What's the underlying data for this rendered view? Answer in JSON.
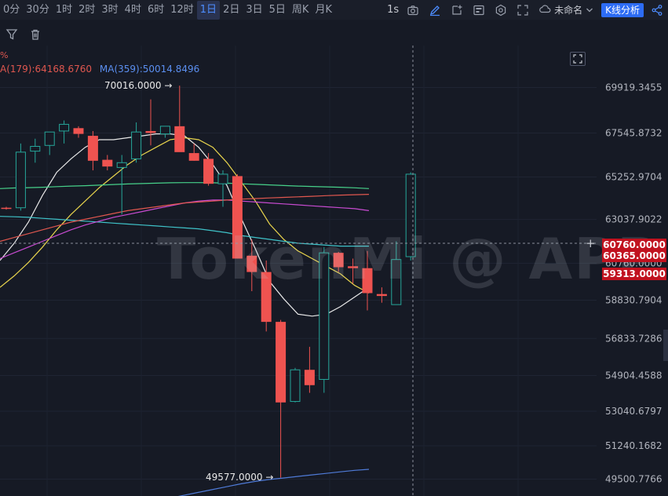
{
  "toolbar": {
    "timeframes": [
      {
        "label": "0分",
        "active": false
      },
      {
        "label": "30分",
        "active": false
      },
      {
        "label": "1时",
        "active": false
      },
      {
        "label": "2时",
        "active": false
      },
      {
        "label": "3时",
        "active": false
      },
      {
        "label": "4时",
        "active": false
      },
      {
        "label": "6时",
        "active": false
      },
      {
        "label": "12时",
        "active": false
      },
      {
        "label": "1日",
        "active": true
      },
      {
        "label": "2日",
        "active": false
      },
      {
        "label": "3日",
        "active": false
      },
      {
        "label": "5日",
        "active": false
      },
      {
        "label": "周K",
        "active": false
      },
      {
        "label": "月K",
        "active": false
      }
    ],
    "interval": "1s",
    "layout_name": "未命名",
    "analysis_button": "K线分析"
  },
  "legend": {
    "percent_fragment": "%",
    "ma179": "A(179):64168.6760",
    "ma359": "MA(359):50014.8496"
  },
  "colors": {
    "up": "#26a69a",
    "down": "#ef5350",
    "ma_white": "#e8e8e8",
    "ma_yellow": "#e8d44d",
    "ma_teal": "#3fc3c9",
    "ma_green": "#47d18a",
    "ma_magenta": "#c84bd1",
    "ma_red": "#e0574f",
    "ma_blue": "#4f7bd8",
    "price_tag": "#c1121f",
    "background": "#161a25"
  },
  "chart_data": {
    "type": "candlestick",
    "y_axis_ticks": [
      "69919.3455",
      "67545.8732",
      "65252.9704",
      "63037.9022",
      "60760.0000",
      "58830.7904",
      "56833.7286",
      "54904.4588",
      "53040.6797",
      "51240.1682",
      "49500.7766"
    ],
    "y_range": [
      49000,
      72000
    ],
    "annotations": {
      "high_label": "70016.0000 →",
      "low_label": "49577.0000 →"
    },
    "current_price_tags": [
      "60760.0000",
      "60365.0000",
      "59313.0000"
    ],
    "watermark": "TokenMi @ APP",
    "candles": [
      {
        "o": 63650,
        "h": 63700,
        "l": 63550,
        "c": 63600
      },
      {
        "o": 63650,
        "h": 67000,
        "l": 63500,
        "c": 66550
      },
      {
        "o": 66600,
        "h": 67250,
        "l": 66000,
        "c": 66850
      },
      {
        "o": 66900,
        "h": 67600,
        "l": 66400,
        "c": 67600
      },
      {
        "o": 67650,
        "h": 68200,
        "l": 67000,
        "c": 68000
      },
      {
        "o": 67800,
        "h": 67900,
        "l": 67300,
        "c": 67500
      },
      {
        "o": 67400,
        "h": 67650,
        "l": 65600,
        "c": 66100
      },
      {
        "o": 66150,
        "h": 66400,
        "l": 65600,
        "c": 65800
      },
      {
        "o": 65750,
        "h": 66400,
        "l": 63300,
        "c": 66000
      },
      {
        "o": 66200,
        "h": 68100,
        "l": 66000,
        "c": 67600
      },
      {
        "o": 67650,
        "h": 69300,
        "l": 66900,
        "c": 67550
      },
      {
        "o": 67500,
        "h": 67900,
        "l": 67300,
        "c": 67900
      },
      {
        "o": 67900,
        "h": 70016,
        "l": 66600,
        "c": 66550
      },
      {
        "o": 66500,
        "h": 67000,
        "l": 66100,
        "c": 66100
      },
      {
        "o": 66200,
        "h": 66500,
        "l": 64800,
        "c": 64900
      },
      {
        "o": 64900,
        "h": 65600,
        "l": 63700,
        "c": 65400
      },
      {
        "o": 65300,
        "h": 65400,
        "l": 61000,
        "c": 61000
      },
      {
        "o": 61150,
        "h": 62000,
        "l": 59300,
        "c": 60300
      },
      {
        "o": 60300,
        "h": 60900,
        "l": 57200,
        "c": 57700
      },
      {
        "o": 57700,
        "h": 57800,
        "l": 49577,
        "c": 53500
      },
      {
        "o": 53550,
        "h": 55300,
        "l": 53500,
        "c": 55200
      },
      {
        "o": 55200,
        "h": 56400,
        "l": 54000,
        "c": 54400
      },
      {
        "o": 54700,
        "h": 61600,
        "l": 54000,
        "c": 61300
      },
      {
        "o": 61300,
        "h": 61350,
        "l": 60300,
        "c": 60550
      },
      {
        "o": 60600,
        "h": 61000,
        "l": 59700,
        "c": 60500
      },
      {
        "o": 60500,
        "h": 61400,
        "l": 58300,
        "c": 59200
      },
      {
        "o": 59150,
        "h": 59500,
        "l": 58700,
        "c": 59050
      },
      {
        "o": 58600,
        "h": 61900,
        "l": 58700,
        "c": 60950
      },
      {
        "o": 61100,
        "h": 65500,
        "l": 60900,
        "c": 65400
      }
    ],
    "ma_series": [
      {
        "color_key": "ma_white",
        "values": [
          60900,
          61800,
          62900,
          64300,
          65500,
          66200,
          66800,
          67200,
          67200,
          67300,
          67400,
          67500,
          67500,
          67400,
          66800,
          65900,
          64800,
          63100,
          61500,
          59800,
          58900,
          58100,
          58000,
          58100,
          58500,
          59000,
          59500
        ]
      },
      {
        "color_key": "ma_yellow",
        "values": [
          59500,
          60100,
          60800,
          61600,
          62500,
          63300,
          64000,
          64700,
          65300,
          65900,
          66400,
          66800,
          67200,
          67300,
          67200,
          66800,
          66000,
          65000,
          64000,
          62800,
          62000,
          61400,
          61000,
          60600,
          60200,
          59600,
          59200
        ]
      },
      {
        "color_key": "ma_teal",
        "values": [
          63200,
          63180,
          63150,
          63100,
          63050,
          63000,
          62950,
          62900,
          62850,
          62800,
          62750,
          62700,
          62650,
          62600,
          62550,
          62450,
          62350,
          62200,
          62100,
          62000,
          61900,
          61800,
          61750,
          61700,
          61650,
          61650,
          61650
        ]
      },
      {
        "color_key": "ma_green",
        "values": [
          64650,
          64680,
          64700,
          64720,
          64750,
          64780,
          64800,
          64830,
          64860,
          64890,
          64910,
          64930,
          64950,
          64960,
          64960,
          64950,
          64930,
          64900,
          64870,
          64840,
          64810,
          64780,
          64760,
          64740,
          64720,
          64690,
          64650
        ]
      },
      {
        "color_key": "ma_magenta",
        "values": [
          61000,
          61300,
          61600,
          61900,
          62200,
          62500,
          62750,
          62950,
          63150,
          63300,
          63450,
          63600,
          63750,
          63900,
          64000,
          64050,
          64050,
          64000,
          63950,
          63900,
          63850,
          63800,
          63750,
          63700,
          63650,
          63600,
          63500
        ]
      },
      {
        "color_key": "ma_red",
        "values": [
          61900,
          62100,
          62300,
          62500,
          62700,
          62900,
          63050,
          63200,
          63350,
          63500,
          63600,
          63700,
          63800,
          63900,
          63950,
          64000,
          64050,
          64100,
          64130,
          64160,
          64190,
          64220,
          64250,
          64280,
          64310,
          64330,
          64350
        ]
      },
      {
        "color_key": "ma_blue",
        "values": [
          48500,
          48650,
          48800,
          48950,
          49100,
          49250,
          49380,
          49480,
          49560,
          49640,
          49720,
          49800,
          49880,
          49960,
          50014
        ]
      }
    ]
  }
}
